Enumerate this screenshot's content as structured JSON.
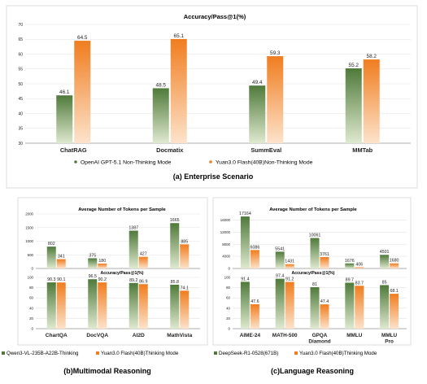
{
  "colors": {
    "green_top": "#4f7a3a",
    "green_bottom": "#dfe9cf",
    "orange_top": "#f07d1f",
    "orange_bottom": "#fde3cb",
    "grid": "#e2e2e2",
    "axis": "#999999",
    "text": "#222222",
    "panel_border": "#cfcfcf"
  },
  "chart_data": [
    {
      "id": "enterprise",
      "type": "bar",
      "title": "Accuracy/Pass@1(%)",
      "caption": "(a) Enterprise Scenario",
      "categories": [
        "ChatRAG",
        "Docmatix",
        "SummEval",
        "MMTab"
      ],
      "series": [
        {
          "name": "OpenAI GPT-5.1 Non-Thinking Mode",
          "values": [
            46.1,
            48.5,
            49.4,
            55.2
          ]
        },
        {
          "name": "Yuan3.0 Flash(40B)Non-Thinking Mode",
          "values": [
            64.5,
            65.1,
            59.3,
            58.2
          ]
        }
      ],
      "ylim": [
        30,
        70
      ],
      "yticks": [
        "30",
        "35",
        "40",
        "45",
        "50",
        "55",
        "60",
        "65",
        "70"
      ],
      "grid": true,
      "legend": "bottom"
    },
    {
      "id": "mm_tokens",
      "type": "bar",
      "title": "Average Number of Tokens per Sample",
      "categories": [
        "ChartQA",
        "DocVQA",
        "AI2D",
        "MathVista"
      ],
      "series": [
        {
          "name": "Qwen3-VL-235B-A22B-Thinking",
          "values": [
            802,
            375,
            1387,
            1665
          ]
        },
        {
          "name": "Yuan3.0 Flash(40B)Thinking Mode",
          "values": [
            341,
            180,
            427,
            885
          ]
        }
      ],
      "ylim": [
        0,
        2000
      ],
      "yticks": [
        "0",
        "500",
        "1000",
        "1500",
        "2000"
      ],
      "grid": true
    },
    {
      "id": "mm_acc",
      "type": "bar",
      "title": "Accuracy/Pass@1(%)",
      "caption": "(b)Multimodal Reasoning",
      "categories": [
        "ChartQA",
        "DocVQA",
        "AI2D",
        "MathVista"
      ],
      "series": [
        {
          "name": "Qwen3-VL-235B-A22B-Thinking",
          "values": [
            90.3,
            96.5,
            89.2,
            85.8
          ]
        },
        {
          "name": "Yuan3.0 Flash(40B)Thinking Mode",
          "values": [
            90.1,
            90.2,
            86.9,
            74.1
          ]
        }
      ],
      "ylim": [
        0,
        100
      ],
      "yticks": [
        "0",
        "20",
        "40",
        "60",
        "80",
        "100"
      ],
      "grid": true,
      "legend": "bottom"
    },
    {
      "id": "lang_tokens",
      "type": "bar",
      "title": "Average Number of Tokens per Sample",
      "categories": [
        "AIME-24",
        "MATH-500",
        "GPQA Diamond",
        "MMLU",
        "MMLU Pro"
      ],
      "series": [
        {
          "name": "DeepSeek-R1-0528(671B)",
          "values": [
            17164,
            5541,
            10061,
            1676,
            4501
          ]
        },
        {
          "name": "Yuan3.0 Flash(40B)Thinking Mode",
          "values": [
            6086,
            1431,
            3761,
            406,
            1680
          ]
        }
      ],
      "ylim": [
        0,
        18000
      ],
      "yticks": [
        "0",
        "4000",
        "8000",
        "12000",
        "16000"
      ],
      "grid": true
    },
    {
      "id": "lang_acc",
      "type": "bar",
      "title": "Accuracy/Pass@1(%)",
      "caption": "(c)Language Reasoning",
      "categories": [
        "AIME-24",
        "MATH-500",
        "GPQA Diamond",
        "MMLU",
        "MMLU Pro"
      ],
      "series": [
        {
          "name": "DeepSeek-R1-0528(671B)",
          "values": [
            91.4,
            97.4,
            81,
            89.7,
            85
          ]
        },
        {
          "name": "Yuan3.0 Flash(40B)Thinking Mode",
          "values": [
            47.6,
            91.2,
            47.4,
            83.7,
            68.1
          ]
        }
      ],
      "ylim": [
        0,
        100
      ],
      "yticks": [
        "0",
        "20",
        "40",
        "60",
        "80",
        "100"
      ],
      "grid": true,
      "legend": "bottom"
    }
  ]
}
